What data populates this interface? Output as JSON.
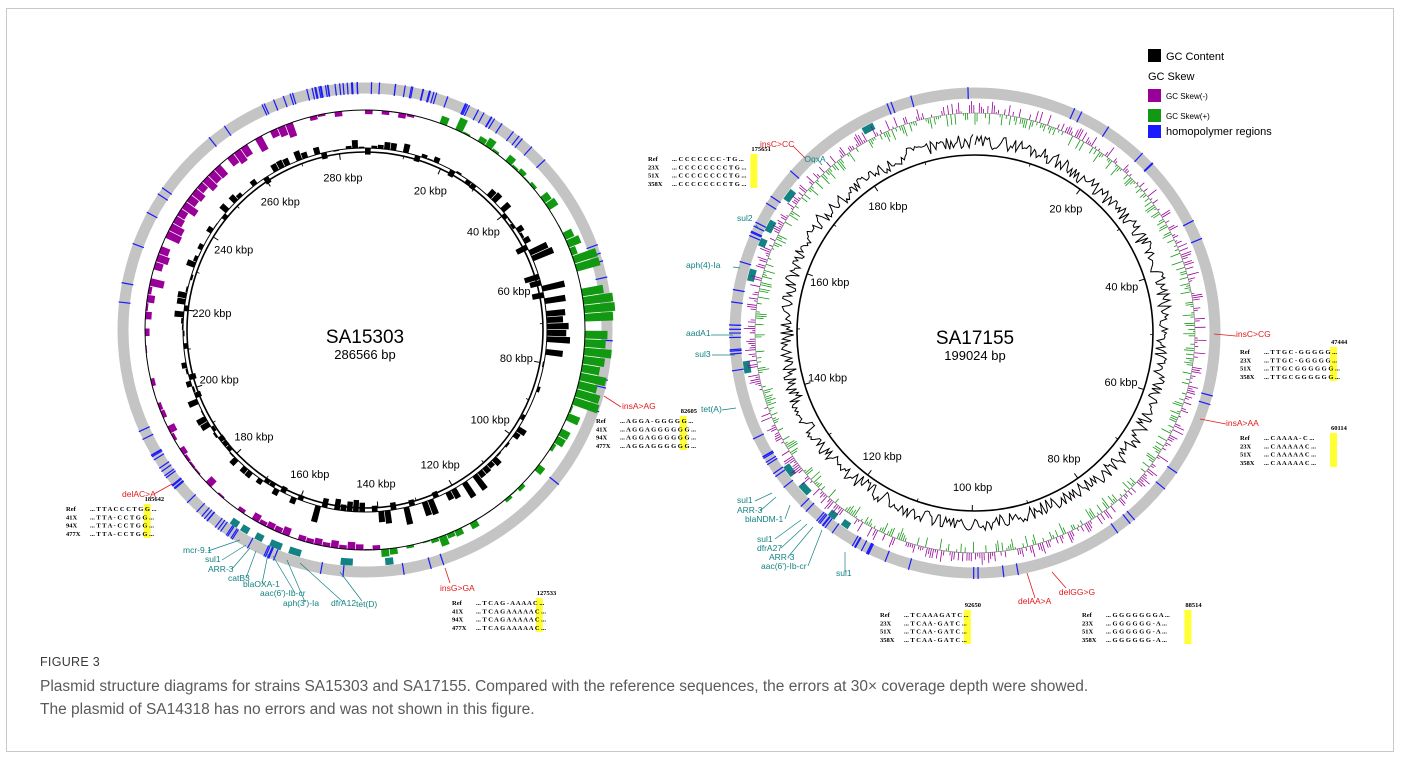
{
  "figure": {
    "label": "FIGURE 3",
    "caption_line1": "Plasmid structure diagrams for strains SA15303 and SA17155. Compared with the reference sequences, the errors at 30× coverage depth were showed.",
    "caption_line2": "The plasmid of SA14318 has no errors and was not shown in this figure."
  },
  "legend": {
    "gc_content": "GC Content",
    "gc_skew": "GC Skew",
    "gc_skew_neg": "GC Skew(-)",
    "gc_skew_pos": "GC Skew(+)",
    "homopolymer": "homopolymer regions",
    "colors": {
      "gc_content": "#000000",
      "gc_skew_neg": "#990099",
      "gc_skew_pos": "#119911",
      "homopolymer": "#1a1aff",
      "gene": "#138282",
      "error": "#e31a1c",
      "highlight": "#ffff33"
    }
  },
  "left_plasmid": {
    "name": "SA15303",
    "size": "286566 bp",
    "ticks": [
      "20 kbp",
      "40 kbp",
      "60 kbp",
      "80 kbp",
      "100 kbp",
      "120 kbp",
      "140 kbp",
      "160 kbp",
      "180 kbp",
      "200 kbp",
      "220 kbp",
      "240 kbp",
      "260 kbp",
      "280 kbp"
    ],
    "genes": [
      "mcr-9.1",
      "sul1",
      "ARR-3",
      "catB3",
      "blaOXA-1",
      "aac(6')-Ib-cr",
      "aph(3')-Ia",
      "dfrA12",
      "tet(D)"
    ],
    "errors": [
      {
        "label": "insA>AG",
        "pos": "82605",
        "rows": [
          {
            "id": "Ref",
            "seq": "... A G G A - G G G G G ..."
          },
          {
            "id": "41X",
            "seq": "... A G G A G G G G G G ..."
          },
          {
            "id": "94X",
            "seq": "... A G G A G G G G G G ..."
          },
          {
            "id": "477X",
            "seq": "... A G G A G G G G G G ..."
          }
        ]
      },
      {
        "label": "delAC>A",
        "pos": "185642",
        "rows": [
          {
            "id": "Ref",
            "seq": "... T T A C C C T G G ..."
          },
          {
            "id": "41X",
            "seq": "... T T A - C C T G G ..."
          },
          {
            "id": "94X",
            "seq": "... T T A - C C T G G ..."
          },
          {
            "id": "477X",
            "seq": "... T T A - C C T G G ..."
          }
        ]
      },
      {
        "label": "insG>GA",
        "pos": "127533",
        "rows": [
          {
            "id": "Ref",
            "seq": "... T C A G - A A A A C ..."
          },
          {
            "id": "41X",
            "seq": "... T C A G A A A A A C ..."
          },
          {
            "id": "94X",
            "seq": "... T C A G A A A A A C ..."
          },
          {
            "id": "477X",
            "seq": "... T C A G A A A A A C ..."
          }
        ]
      }
    ]
  },
  "right_plasmid": {
    "name": "SA17155",
    "size": "199024 bp",
    "ticks": [
      "20 kbp",
      "40 kbp",
      "60 kbp",
      "80 kbp",
      "100 kbp",
      "120 kbp",
      "140 kbp",
      "160 kbp",
      "180 kbp"
    ],
    "genes": [
      "OqxA",
      "sul2",
      "aph(4)-Ia",
      "aadA1",
      "sul3",
      "tet(A)",
      "sul1",
      "ARR-3",
      "blaNDM-1",
      "sul1",
      "dfrA27",
      "ARR-3",
      "aac(6')-Ib-cr",
      "sul1"
    ],
    "errors": [
      {
        "label": "insC>CC",
        "pos": "175651",
        "rows": [
          {
            "id": "Ref",
            "seq": "... C C C C C C C - T G ..."
          },
          {
            "id": "23X",
            "seq": "... C C C C C C C C T G ..."
          },
          {
            "id": "51X",
            "seq": "... C C C C C C C C T G ..."
          },
          {
            "id": "358X",
            "seq": "... C C C C C C C C T G ..."
          }
        ]
      },
      {
        "label": "insC>CG",
        "pos": "47444",
        "rows": [
          {
            "id": "Ref",
            "seq": "... T T G C - G G G G G ..."
          },
          {
            "id": "23X",
            "seq": "... T T G C - G G G G G ..."
          },
          {
            "id": "51X",
            "seq": "... T T G C G G G G G G ..."
          },
          {
            "id": "358X",
            "seq": "... T T G C G G G G G G ..."
          }
        ]
      },
      {
        "label": "insA>AA",
        "pos": "60114",
        "rows": [
          {
            "id": "Ref",
            "seq": "... C A A A A - C ..."
          },
          {
            "id": "23X",
            "seq": "... C A A A A A C ..."
          },
          {
            "id": "51X",
            "seq": "... C A A A A A C ..."
          },
          {
            "id": "358X",
            "seq": "... C A A A A A C ..."
          }
        ]
      },
      {
        "label": "delAA>A",
        "pos": "92650",
        "rows": [
          {
            "id": "Ref",
            "seq": "... T C A A A G A T C ..."
          },
          {
            "id": "23X",
            "seq": "... T C A A - G A T C ..."
          },
          {
            "id": "51X",
            "seq": "... T C A A - G A T C ..."
          },
          {
            "id": "358X",
            "seq": "... T C A A - G A T C ..."
          }
        ]
      },
      {
        "label": "delGG>G",
        "pos": "88514",
        "rows": [
          {
            "id": "Ref",
            "seq": "... G G G G G G G A ..."
          },
          {
            "id": "23X",
            "seq": "... G G G G G G - A ..."
          },
          {
            "id": "51X",
            "seq": "... G G G G G G - A ..."
          },
          {
            "id": "358X",
            "seq": "... G G G G G G - A ..."
          }
        ]
      }
    ]
  }
}
